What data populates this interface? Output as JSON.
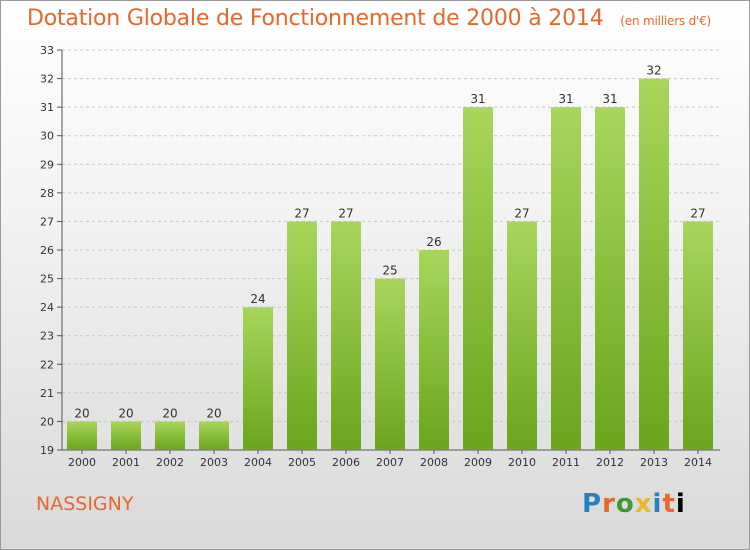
{
  "title": "Dotation Globale de Fonctionnement de 2000 à 2014",
  "subtitle": "(en milliers d'€)",
  "commune": "NASSIGNY",
  "logo": "Proxiti",
  "colors": {
    "accent": "#e8672a",
    "bar_top": "#a8d65c",
    "bar_bottom": "#6aa51c"
  },
  "chart_data": {
    "type": "bar",
    "title": "Dotation Globale de Fonctionnement de 2000 à 2014",
    "subtitle": "(en milliers d'€)",
    "xlabel": "",
    "ylabel": "",
    "categories": [
      "2000",
      "2001",
      "2002",
      "2003",
      "2004",
      "2005",
      "2006",
      "2007",
      "2008",
      "2009",
      "2010",
      "2011",
      "2012",
      "2013",
      "2014"
    ],
    "values": [
      20,
      20,
      20,
      20,
      24,
      27,
      27,
      25,
      26,
      31,
      27,
      31,
      31,
      32,
      27
    ],
    "ylim": [
      19,
      33
    ],
    "yticks": [
      19,
      20,
      21,
      22,
      23,
      24,
      25,
      26,
      27,
      28,
      29,
      30,
      31,
      32,
      33
    ],
    "grid": true
  }
}
